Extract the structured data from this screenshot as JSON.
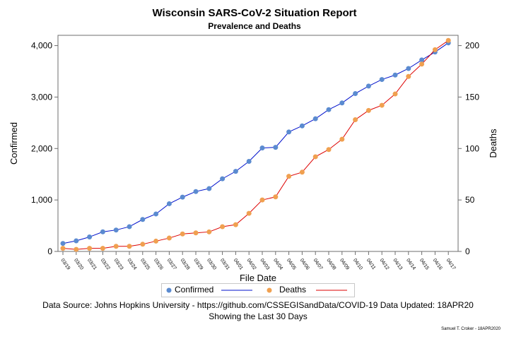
{
  "chart_data": {
    "type": "line",
    "title": "Wisconsin SARS-CoV-2 Situation Report",
    "subtitle": "Prevalence and Deaths",
    "xlabel": "File Date",
    "ylabel": "Confirmed",
    "y2label": "Deaths",
    "ylim": [
      0,
      4200
    ],
    "y2lim": [
      0,
      210
    ],
    "yticks": [
      0,
      1000,
      2000,
      3000,
      4000
    ],
    "ytick_labels": [
      "0",
      "1,000",
      "2,000",
      "3,000",
      "4,000"
    ],
    "y2ticks": [
      0,
      50,
      100,
      150,
      200
    ],
    "y2tick_labels": [
      "0",
      "50",
      "100",
      "150",
      "200"
    ],
    "categories": [
      "03/19",
      "03/20",
      "03/21",
      "03/22",
      "03/23",
      "03/24",
      "03/25",
      "03/26",
      "03/27",
      "03/28",
      "03/29",
      "03/30",
      "03/31",
      "04/01",
      "04/02",
      "04/03",
      "04/04",
      "04/05",
      "04/06",
      "04/07",
      "04/08",
      "04/09",
      "04/10",
      "04/11",
      "04/12",
      "04/13",
      "04/14",
      "04/15",
      "04/16",
      "04/17"
    ],
    "series": [
      {
        "name": "Confirmed",
        "axis": "left",
        "marker_color": "#5b8bd0",
        "line_color": "#0010cc",
        "values": [
          155,
          206,
          281,
          381,
          416,
          481,
          621,
          728,
          927,
          1055,
          1164,
          1221,
          1412,
          1556,
          1750,
          2011,
          2023,
          2322,
          2440,
          2578,
          2756,
          2885,
          3068,
          3213,
          3341,
          3428,
          3555,
          3721,
          3875,
          4053
        ]
      },
      {
        "name": "Deaths",
        "axis": "right",
        "marker_color": "#f0a050",
        "line_color": "#dd0000",
        "values": [
          3,
          2,
          3,
          3,
          5,
          5,
          7,
          10,
          13,
          17,
          18,
          19,
          24,
          26,
          37,
          50,
          53,
          73,
          77,
          92,
          99,
          109,
          128,
          137,
          142,
          153,
          170,
          182,
          196,
          205
        ]
      }
    ],
    "grid": false,
    "legend": "bottom",
    "legend_labels": [
      "Confirmed",
      "Deaths"
    ]
  },
  "footnote_line1": "Data Source: Johns Hopkins University - https://github.com/CSSEGISandData/COVID-19 Data Updated: 18APR20",
  "footnote_line2": "Showing the Last 30 Days",
  "credit": "Samuel T. Croker - 18APR2020"
}
